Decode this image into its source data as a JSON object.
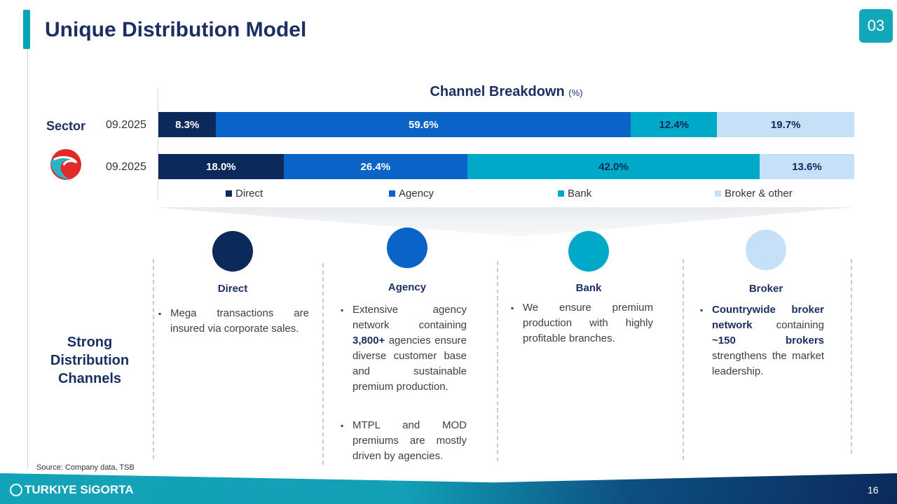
{
  "header": {
    "title": "Unique Distribution Model",
    "section_badge": "03"
  },
  "chart_data": {
    "type": "bar",
    "stacked": true,
    "orientation": "horizontal",
    "title": "Channel Breakdown",
    "title_unit": "(%)",
    "rows": [
      {
        "label": "Sector",
        "period": "09.2025"
      },
      {
        "label": "Türkiye Sigorta",
        "period": "09.2025"
      }
    ],
    "series": [
      {
        "name": "Direct",
        "color": "#0b2a5b",
        "values": [
          8.3,
          18.0
        ],
        "labels": [
          "8.3%",
          "18.0%"
        ]
      },
      {
        "name": "Agency",
        "color": "#0a64c8",
        "values": [
          59.6,
          26.4
        ],
        "labels": [
          "59.6%",
          "26.4%"
        ]
      },
      {
        "name": "Bank",
        "color": "#00a9c7",
        "values": [
          12.4,
          42.0
        ],
        "labels": [
          "12.4%",
          "42.0%"
        ]
      },
      {
        "name": "Broker & other",
        "color": "#c5e0f7",
        "values": [
          19.7,
          13.6
        ],
        "labels": [
          "19.7%",
          "13.6%"
        ]
      }
    ],
    "legend_position": "bottom",
    "xlim": [
      0,
      100
    ]
  },
  "channels_title": "Strong Distribution Channels",
  "columns": [
    {
      "title": "Direct",
      "color": "#0b2a5b",
      "bullets": [
        "Mega transactions are insured via corporate sales."
      ]
    },
    {
      "title": "Agency",
      "color": "#0a64c8",
      "bullets": [
        "Extensive agency network containing <b>3,800+</b> agencies ensure diverse customer base and sustainable premium production.",
        "MTPL and MOD premiums are mostly driven by agencies."
      ]
    },
    {
      "title": "Bank",
      "color": "#00a9c7",
      "bullets": [
        "We ensure premium production with highly profitable branches."
      ]
    },
    {
      "title": "Broker",
      "color": "#c5e0f7",
      "bullets": [
        "<b>Countrywide broker network</b> containing <b>~150 brokers</b> strengthens the market leadership."
      ]
    }
  ],
  "source": "Source: Company data, TSB",
  "footer": {
    "brand": "TURKIYE SiGORTA",
    "page": "16"
  }
}
